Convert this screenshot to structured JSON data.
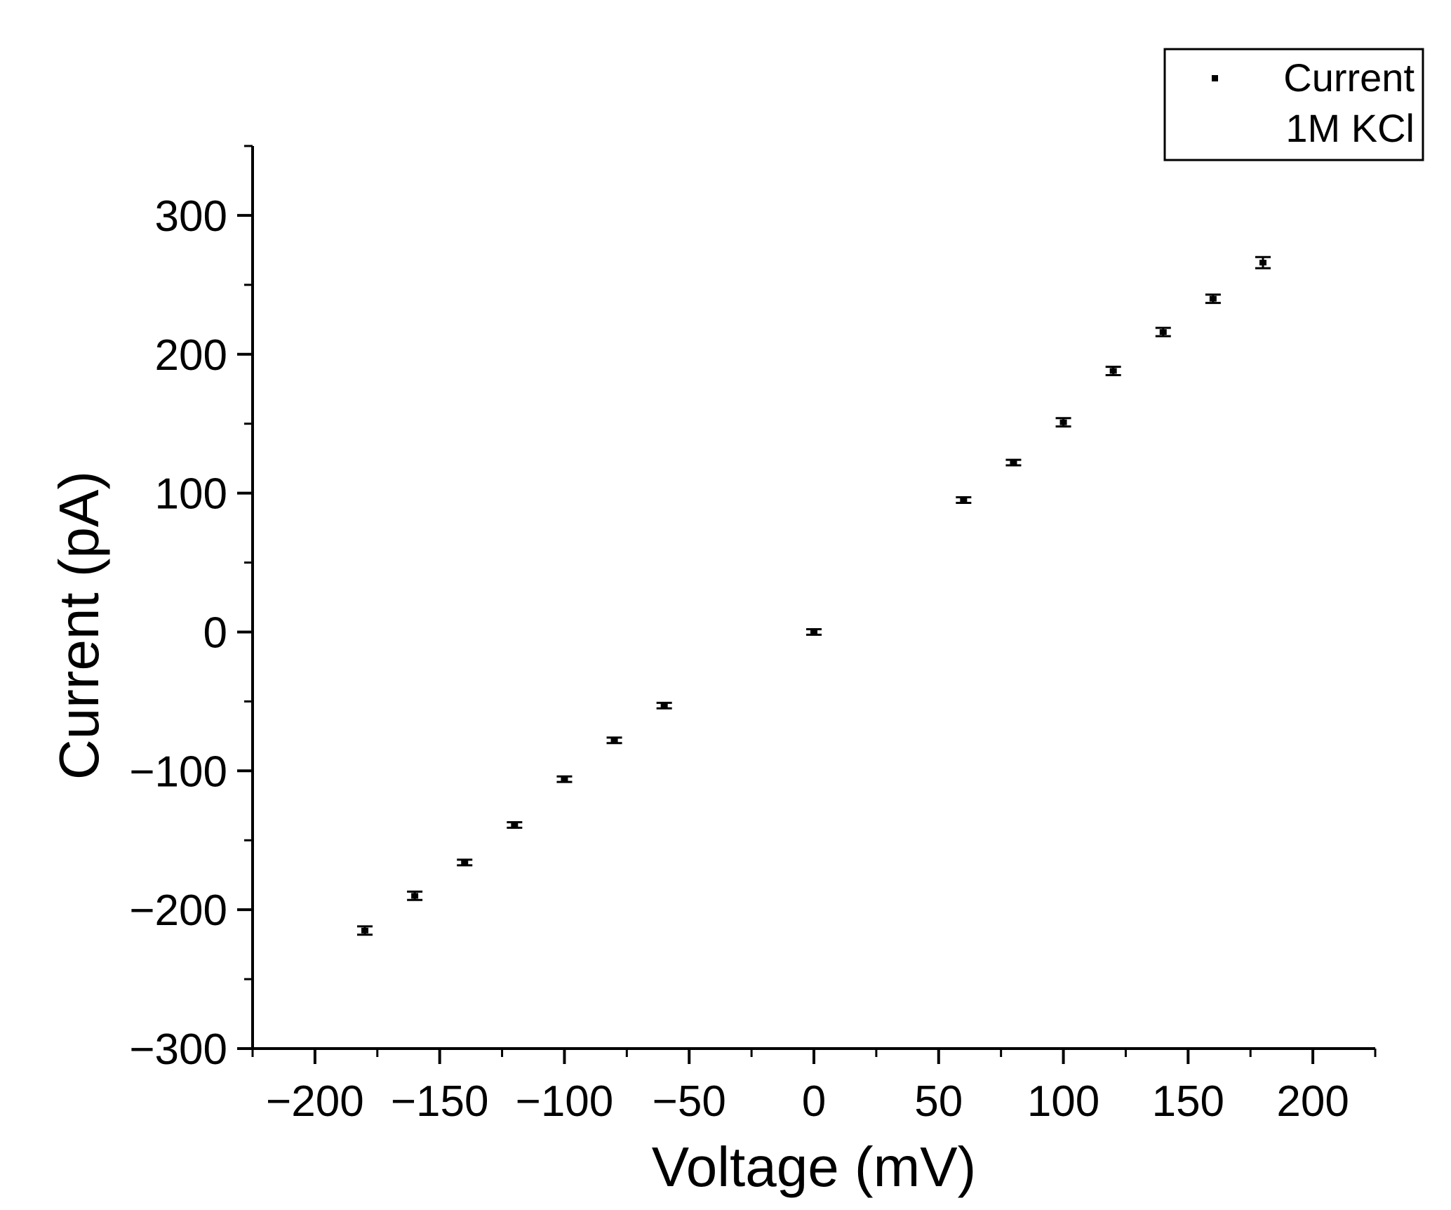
{
  "chart_data": {
    "type": "scatter",
    "title": "",
    "xlabel": "Voltage (mV)",
    "ylabel": "Current (pA)",
    "xlim": [
      -225,
      225
    ],
    "ylim": [
      -300,
      350
    ],
    "xticks": [
      -200,
      -150,
      -100,
      -50,
      0,
      50,
      100,
      150,
      200
    ],
    "xtick_labels": [
      "−200",
      "−150",
      "−100",
      "−50",
      "0",
      "50",
      "100",
      "150",
      "200"
    ],
    "yticks": [
      -300,
      -200,
      -100,
      0,
      100,
      200,
      300
    ],
    "ytick_labels": [
      "−300",
      "−200",
      "−100",
      "0",
      "100",
      "200",
      "300"
    ],
    "grid": false,
    "legend": {
      "position": "top-right",
      "entries": [
        "Current",
        "1M KCl"
      ]
    },
    "series": [
      {
        "name": "Current",
        "x": [
          -180,
          -160,
          -140,
          -120,
          -100,
          -80,
          -60,
          0,
          60,
          80,
          100,
          120,
          140,
          160,
          180
        ],
        "y": [
          -215,
          -190,
          -166,
          -139,
          -106,
          -78,
          -53,
          0,
          95,
          122,
          151,
          188,
          216,
          240,
          266
        ],
        "y_err": [
          3,
          3,
          2,
          2,
          2,
          2,
          2,
          2,
          2,
          2,
          3,
          3,
          3,
          3,
          4
        ]
      }
    ]
  }
}
